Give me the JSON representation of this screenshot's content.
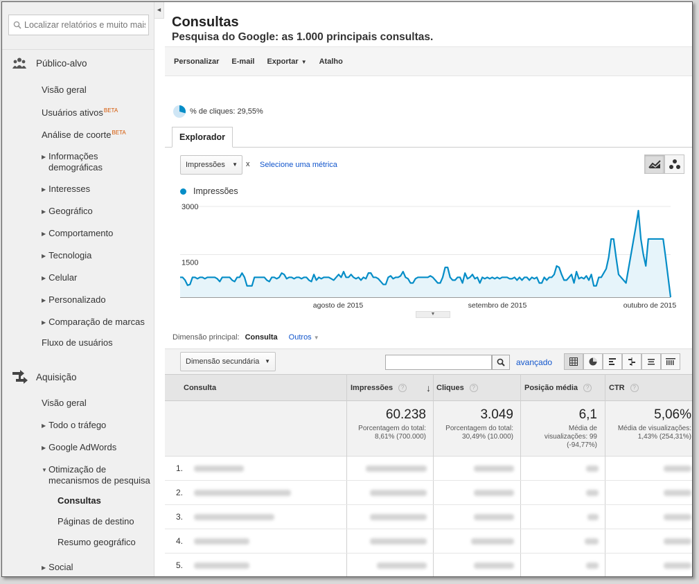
{
  "sidebar": {
    "search_placeholder": "Localizar relatórios e muito mais",
    "collapse_glyph": "◄",
    "sections": [
      {
        "label": "Público-alvo",
        "items": [
          {
            "label": "Visão geral"
          },
          {
            "label": "Usuários ativos",
            "badge": "BETA"
          },
          {
            "label": "Análise de coorte",
            "badge": "BETA"
          },
          {
            "label": "Informações demográficas",
            "expandable": true
          },
          {
            "label": "Interesses",
            "expandable": true
          },
          {
            "label": "Geográfico",
            "expandable": true
          },
          {
            "label": "Comportamento",
            "expandable": true
          },
          {
            "label": "Tecnologia",
            "expandable": true
          },
          {
            "label": "Celular",
            "expandable": true
          },
          {
            "label": "Personalizado",
            "expandable": true
          },
          {
            "label": "Comparação de marcas",
            "expandable": true
          },
          {
            "label": "Fluxo de usuários"
          }
        ]
      },
      {
        "label": "Aquisição",
        "items": [
          {
            "label": "Visão geral"
          },
          {
            "label": "Todo o tráfego",
            "expandable": true
          },
          {
            "label": "Google AdWords",
            "expandable": true
          },
          {
            "label": "Otimização de mecanismos de pesquisa",
            "expanded": true
          },
          {
            "label": "Consultas",
            "active": true
          },
          {
            "label": "Páginas de destino"
          },
          {
            "label": "Resumo geográfico"
          },
          {
            "label": "Social",
            "expandable": true
          }
        ]
      }
    ]
  },
  "report": {
    "title": "Consultas",
    "subtitle": "Pesquisa do Google: as 1.000 principais consultas."
  },
  "toolbar": {
    "customize": "Personalizar",
    "email": "E-mail",
    "export": "Exportar",
    "shortcut": "Atalho"
  },
  "segment": {
    "label": "% de cliques: 29,55%",
    "fraction": 0.2955
  },
  "explorer": {
    "tab": "Explorador",
    "metric": "Impressões",
    "remove": "x",
    "select_metric": "Selecione uma métrica"
  },
  "chart_data": {
    "type": "area",
    "series": [
      {
        "name": "Impressões",
        "color": "#058dc7",
        "values": [
          700,
          700,
          600,
          420,
          450,
          700,
          700,
          650,
          700,
          700,
          650,
          700,
          700,
          700,
          700,
          650,
          550,
          700,
          700,
          700,
          700,
          600,
          550,
          700,
          700,
          850,
          700,
          400,
          400,
          400,
          700,
          700,
          700,
          700,
          700,
          600,
          550,
          700,
          700,
          650,
          700,
          850,
          800,
          650,
          700,
          700,
          650,
          700,
          700,
          650,
          700,
          700,
          600,
          550,
          800,
          600,
          700,
          650,
          700,
          700,
          700,
          650,
          600,
          700,
          800,
          700,
          900,
          700,
          700,
          800,
          700,
          650,
          700,
          600,
          700,
          650,
          850,
          850,
          700,
          700,
          650,
          550,
          450,
          450,
          700,
          750,
          650,
          700,
          700,
          750,
          900,
          700,
          650,
          500,
          500,
          650,
          700,
          700,
          700,
          700,
          700,
          750,
          700,
          600,
          500,
          500,
          700,
          1050,
          1050,
          700,
          600,
          600,
          700,
          700,
          500,
          850,
          650,
          700,
          800,
          650,
          700,
          500,
          700,
          650,
          700,
          650,
          700,
          650,
          700,
          650,
          700,
          700,
          700,
          650,
          650,
          700,
          600,
          700,
          600,
          700,
          700,
          600,
          700,
          650,
          700,
          500,
          500,
          700,
          600,
          700,
          700,
          800,
          1100,
          1050,
          800,
          600,
          600,
          700,
          800,
          500,
          900,
          650,
          700,
          650,
          750,
          600,
          800,
          400,
          400,
          700,
          700,
          850,
          1000,
          1400,
          2050,
          2050,
          1400,
          800,
          700,
          600,
          500,
          1000,
          1500,
          2000,
          2500,
          3050,
          2050,
          1500,
          1100,
          2050,
          2050,
          2050,
          2050,
          2050,
          2050,
          2050,
          1400,
          700,
          0
        ]
      }
    ],
    "ylim": [
      0,
      3000
    ],
    "yticks": [
      "3000",
      "1500"
    ],
    "xlabels": [
      "agosto de 2015",
      "setembro de 2015",
      "outubro de 2015"
    ],
    "grid": true
  },
  "dimension": {
    "label": "Dimensão principal:",
    "active": "Consulta",
    "other": "Outros"
  },
  "filter": {
    "secondary": "Dimensão secundária",
    "advanced": "avançado"
  },
  "table": {
    "columns": [
      "Consulta",
      "Impressões",
      "Cliques",
      "Posição média",
      "CTR"
    ],
    "totals": [
      {
        "value": "60.238",
        "note1": "Porcentagem do total:",
        "note2": "8,61% (700.000)"
      },
      {
        "value": "3.049",
        "note1": "Porcentagem do total:",
        "note2": "30,49% (10.000)"
      },
      {
        "value": "6,1",
        "note1": "Média de",
        "note2": "visualizações: 99",
        "note3": "(-94,77%)"
      },
      {
        "value": "5,06%",
        "note1": "Média de visualizações:",
        "note2": "1,43% (254,31%)"
      }
    ],
    "rows": [
      "1.",
      "2.",
      "3.",
      "4.",
      "5."
    ]
  }
}
